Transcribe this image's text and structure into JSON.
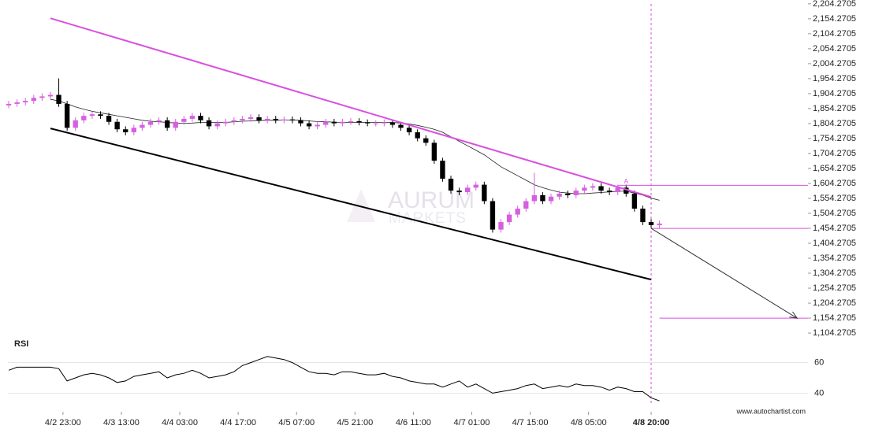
{
  "chart_data": {
    "type": "candlestick",
    "x": [
      0,
      2,
      4,
      6,
      8,
      10,
      12,
      14,
      16,
      18,
      20,
      22,
      24,
      26,
      28,
      30,
      32,
      34,
      36,
      38,
      40,
      42,
      44,
      46,
      48,
      50,
      52,
      54,
      56,
      58,
      60,
      62,
      64,
      66,
      68,
      70,
      72,
      74,
      76,
      78,
      80,
      82,
      84,
      86,
      88,
      90,
      92,
      94,
      96,
      98,
      100,
      102,
      104,
      106,
      108,
      110,
      112,
      114,
      116,
      118,
      120,
      122,
      124,
      126,
      128,
      130,
      132,
      134,
      136,
      138,
      140,
      142,
      144,
      146,
      148,
      150,
      152,
      154,
      156
    ],
    "open": [
      1865,
      1870,
      1875,
      1880,
      1890,
      1895,
      1900,
      1870,
      1790,
      1815,
      1830,
      1835,
      1830,
      1810,
      1785,
      1775,
      1790,
      1800,
      1810,
      1815,
      1790,
      1810,
      1820,
      1830,
      1815,
      1795,
      1805,
      1810,
      1815,
      1820,
      1825,
      1815,
      1820,
      1815,
      1818,
      1815,
      1805,
      1795,
      1800,
      1810,
      1805,
      1810,
      1812,
      1808,
      1805,
      1805,
      1808,
      1800,
      1790,
      1775,
      1755,
      1740,
      1680,
      1620,
      1580,
      1575,
      1590,
      1600,
      1545,
      1450,
      1475,
      1500,
      1520,
      1545,
      1565,
      1545,
      1560,
      1570,
      1565,
      1580,
      1590,
      1595,
      1580,
      1575,
      1590,
      1570,
      1520,
      1475,
      1465
    ],
    "high": [
      1880,
      1885,
      1890,
      1900,
      1905,
      1910,
      1955,
      1880,
      1825,
      1840,
      1845,
      1845,
      1840,
      1820,
      1795,
      1800,
      1810,
      1820,
      1825,
      1825,
      1820,
      1830,
      1840,
      1840,
      1825,
      1815,
      1820,
      1825,
      1830,
      1835,
      1835,
      1830,
      1830,
      1828,
      1828,
      1825,
      1815,
      1810,
      1820,
      1820,
      1820,
      1822,
      1822,
      1818,
      1815,
      1818,
      1818,
      1810,
      1800,
      1785,
      1765,
      1750,
      1690,
      1630,
      1590,
      1600,
      1610,
      1610,
      1555,
      1485,
      1510,
      1530,
      1555,
      1640,
      1575,
      1570,
      1580,
      1580,
      1590,
      1600,
      1605,
      1605,
      1590,
      1600,
      1600,
      1580,
      1530,
      1485,
      1480
    ],
    "low": [
      1855,
      1860,
      1865,
      1870,
      1880,
      1885,
      1860,
      1780,
      1780,
      1805,
      1820,
      1820,
      1800,
      1775,
      1765,
      1765,
      1780,
      1790,
      1800,
      1780,
      1780,
      1800,
      1810,
      1805,
      1785,
      1785,
      1795,
      1800,
      1805,
      1810,
      1805,
      1805,
      1805,
      1805,
      1805,
      1795,
      1785,
      1785,
      1790,
      1795,
      1795,
      1800,
      1798,
      1795,
      1795,
      1795,
      1790,
      1780,
      1765,
      1745,
      1730,
      1670,
      1610,
      1570,
      1565,
      1565,
      1580,
      1535,
      1440,
      1440,
      1465,
      1490,
      1510,
      1535,
      1535,
      1535,
      1550,
      1555,
      1555,
      1570,
      1580,
      1570,
      1565,
      1565,
      1560,
      1510,
      1465,
      1455,
      1455
    ],
    "close": [
      1870,
      1875,
      1880,
      1890,
      1895,
      1900,
      1870,
      1790,
      1815,
      1830,
      1835,
      1830,
      1810,
      1785,
      1775,
      1790,
      1800,
      1810,
      1815,
      1790,
      1810,
      1820,
      1830,
      1815,
      1795,
      1805,
      1810,
      1815,
      1820,
      1825,
      1815,
      1820,
      1815,
      1818,
      1815,
      1805,
      1795,
      1800,
      1810,
      1805,
      1810,
      1812,
      1808,
      1805,
      1805,
      1808,
      1800,
      1790,
      1775,
      1755,
      1740,
      1680,
      1620,
      1580,
      1575,
      1590,
      1600,
      1545,
      1450,
      1475,
      1500,
      1520,
      1545,
      1565,
      1545,
      1560,
      1570,
      1565,
      1580,
      1590,
      1595,
      1580,
      1575,
      1590,
      1570,
      1520,
      1475,
      1465,
      1470
    ],
    "ma": [
      null,
      null,
      null,
      null,
      null,
      1885,
      1880,
      1870,
      1860,
      1852,
      1845,
      1840,
      1835,
      1830,
      1825,
      1820,
      1815,
      1812,
      1810,
      1808,
      1806,
      1805,
      1806,
      1808,
      1808,
      1808,
      1808,
      1810,
      1812,
      1813,
      1814,
      1815,
      1815,
      1816,
      1816,
      1815,
      1813,
      1811,
      1810,
      1809,
      1808,
      1808,
      1808,
      1808,
      1808,
      1808,
      1808,
      1806,
      1803,
      1798,
      1792,
      1785,
      1775,
      1760,
      1745,
      1730,
      1715,
      1700,
      1680,
      1660,
      1645,
      1630,
      1615,
      1600,
      1590,
      1582,
      1575,
      1572,
      1570,
      1570,
      1572,
      1574,
      1576,
      1578,
      1578,
      1572,
      1565,
      1555,
      1548
    ],
    "xlim": [
      -0.2,
      191.6
    ],
    "ylim": [
      1086,
      2217
    ],
    "yticks": [
      {
        "value": 2204.2705,
        "label": "2,204.2705"
      },
      {
        "value": 2154.2705,
        "label": "2,154.2705"
      },
      {
        "value": 2104.2705,
        "label": "2,104.2705"
      },
      {
        "value": 2054.2705,
        "label": "2,054.2705"
      },
      {
        "value": 2004.2705,
        "label": "2,004.2705"
      },
      {
        "value": 1954.2705,
        "label": "1,954.2705"
      },
      {
        "value": 1904.2705,
        "label": "1,904.2705"
      },
      {
        "value": 1854.2705,
        "label": "1,854.2705"
      },
      {
        "value": 1804.2705,
        "label": "1,804.2705"
      },
      {
        "value": 1754.2705,
        "label": "1,754.2705"
      },
      {
        "value": 1704.2705,
        "label": "1,704.2705"
      },
      {
        "value": 1654.2705,
        "label": "1,654.2705"
      },
      {
        "value": 1604.2705,
        "label": "1,604.2705"
      },
      {
        "value": 1554.2705,
        "label": "1,554.2705"
      },
      {
        "value": 1504.2705,
        "label": "1,504.2705"
      },
      {
        "value": 1454.2705,
        "label": "1,454.2705"
      },
      {
        "value": 1404.2705,
        "label": "1,404.2705"
      },
      {
        "value": 1354.2705,
        "label": "1,354.2705"
      },
      {
        "value": 1304.2705,
        "label": "1,304.2705"
      },
      {
        "value": 1254.2705,
        "label": "1,254.2705"
      },
      {
        "value": 1204.2705,
        "label": "1,204.2705"
      },
      {
        "value": 1154.2705,
        "label": "1,154.2705"
      },
      {
        "value": 1104.2705,
        "label": "1,104.2705"
      }
    ],
    "xticks": [
      {
        "value": 13,
        "label": "4/2 23:00"
      },
      {
        "value": 27,
        "label": "4/3 13:00"
      },
      {
        "value": 41,
        "label": "4/4 03:00"
      },
      {
        "value": 55,
        "label": "4/4 17:00"
      },
      {
        "value": 69,
        "label": "4/5 07:00"
      },
      {
        "value": 83,
        "label": "4/5 21:00"
      },
      {
        "value": 97,
        "label": "4/6 11:00"
      },
      {
        "value": 111,
        "label": "4/7 01:00"
      },
      {
        "value": 125,
        "label": "4/7 15:00"
      },
      {
        "value": 139,
        "label": "4/8 05:00"
      },
      {
        "value": 154,
        "label": "4/8 20:00"
      }
    ],
    "grid": false,
    "up_color": "#d65fe0",
    "down_color": "#000000",
    "ma_color": "#222222",
    "resistance": {
      "x": [
        10,
        154
      ],
      "y": [
        2156,
        1559
      ],
      "color": "#d94fe0"
    },
    "support": {
      "x": [
        10,
        154
      ],
      "y": [
        1788,
        1283
      ],
      "color": "#000000"
    },
    "levels": [
      {
        "value": 1598,
        "from": 146
      },
      {
        "value": 1454,
        "from": 154
      },
      {
        "value": 1154,
        "from": 156
      }
    ],
    "level_color": "#d94fe0",
    "forecast": {
      "x": [
        154,
        189
      ],
      "y": [
        1454,
        1154
      ]
    },
    "marker": {
      "label": "A",
      "x": 148,
      "y": 1610
    },
    "rsi": {
      "title": "RSI",
      "values": [
        55,
        57,
        57,
        57,
        57,
        57,
        56,
        48,
        50,
        52,
        53,
        52,
        50,
        47,
        48,
        51,
        52,
        53,
        54,
        50,
        52,
        53,
        55,
        53,
        50,
        51,
        52,
        54,
        58,
        60,
        62,
        64,
        63,
        62,
        60,
        57,
        54,
        53,
        53,
        52,
        54,
        54,
        53,
        52,
        52,
        53,
        51,
        50,
        48,
        47,
        46,
        46,
        44,
        46,
        48,
        44,
        46,
        43,
        40,
        41,
        42,
        43,
        45,
        46,
        43,
        44,
        45,
        44,
        46,
        45,
        45,
        44,
        42,
        44,
        43,
        41,
        41,
        37,
        35
      ],
      "ylim": [
        32,
        68
      ],
      "yticks": [
        60,
        40
      ],
      "grid": true
    },
    "watermark": [
      "AURUM",
      "MARKETS"
    ],
    "source": "www.autochartist.com"
  }
}
